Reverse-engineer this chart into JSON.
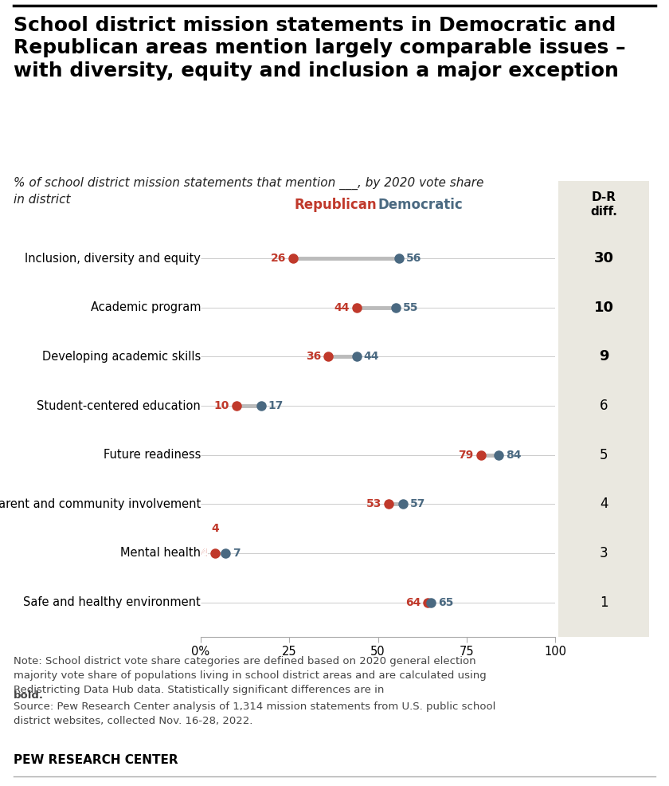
{
  "title": "School district mission statements in Democratic and\nRepublican areas mention largely comparable issues –\nwith diversity, equity and inclusion a major exception",
  "subtitle": "% of school district mission statements that mention ___, by 2020 vote share\nin district",
  "categories": [
    "Inclusion, diversity and equity",
    "Academic program",
    "Developing academic skills",
    "Student-centered education",
    "Future readiness",
    "Parent and community involvement",
    "Mental health",
    "Safe and healthy environment"
  ],
  "republican_values": [
    26,
    44,
    36,
    10,
    79,
    53,
    4,
    64
  ],
  "democratic_values": [
    56,
    55,
    44,
    17,
    84,
    57,
    7,
    65
  ],
  "diff_values": [
    30,
    10,
    9,
    6,
    5,
    4,
    3,
    1
  ],
  "bold_diff": [
    true,
    true,
    true,
    false,
    false,
    false,
    false,
    false
  ],
  "republican_color": "#C0392B",
  "democratic_color": "#4A6981",
  "connector_color": "#BBBBBB",
  "bg_line_color": "#CCCCCC",
  "diff_bg_color": "#EAE8E0",
  "note_line1": "Note: School district vote share categories are defined based on 2020 general election",
  "note_line2": "majority vote share of populations living in school district areas and are calculated using",
  "note_line3": "Redistricting Data Hub data. Statistically significant differences are in ",
  "note_bold": "bold.",
  "note_line4": "Source: Pew Research Center analysis of 1,314 mission statements from U.S. public school",
  "note_line5": "district websites, collected Nov. 16-28, 2022.",
  "source_label": "PEW RESEARCH CENTER",
  "xlim": [
    0,
    100
  ],
  "xticks": [
    0,
    25,
    50,
    75,
    100
  ],
  "xticklabels": [
    "0%",
    "25",
    "50",
    "75",
    "100"
  ]
}
